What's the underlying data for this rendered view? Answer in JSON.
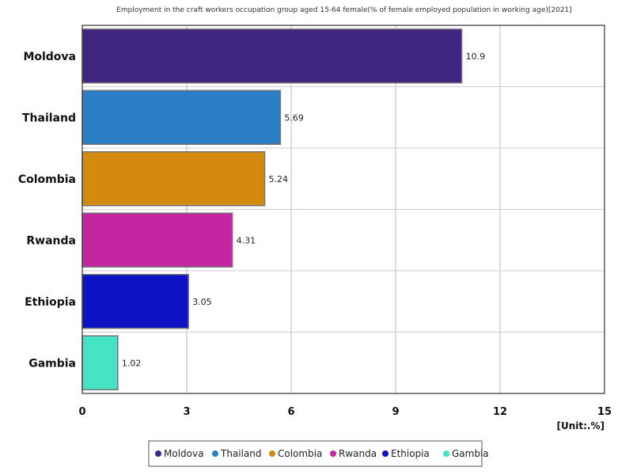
{
  "chart_data": {
    "type": "bar",
    "orientation": "horizontal",
    "title": "Employment in the craft workers occupation group aged 15-64 female(% of female employed population in working age)[2021]",
    "categories": [
      "Moldova",
      "Thailand",
      "Colombia",
      "Rwanda",
      "Ethiopia",
      "Gambia"
    ],
    "values": [
      10.9,
      5.69,
      5.24,
      4.31,
      3.05,
      1.02
    ],
    "value_labels": [
      "10.9",
      "5.69",
      "5.24",
      "4.31",
      "3.05",
      "1.02"
    ],
    "colors": [
      "#3f2781",
      "#2a7fc4",
      "#d4890f",
      "#c425a0",
      "#0d13c2",
      "#45e3c4"
    ],
    "xlim": [
      0,
      15
    ],
    "xticks": [
      0,
      3,
      6,
      9,
      12,
      15
    ],
    "xtick_labels": [
      "0",
      "3",
      "6",
      "9",
      "12",
      "15"
    ],
    "unit_label": "[Unit:.%]",
    "grid": true,
    "legend": {
      "placement": "bottom-center",
      "entries": [
        "Moldova",
        "Thailand",
        "Colombia",
        "Rwanda",
        "Ethiopia",
        "Gambia"
      ]
    }
  }
}
